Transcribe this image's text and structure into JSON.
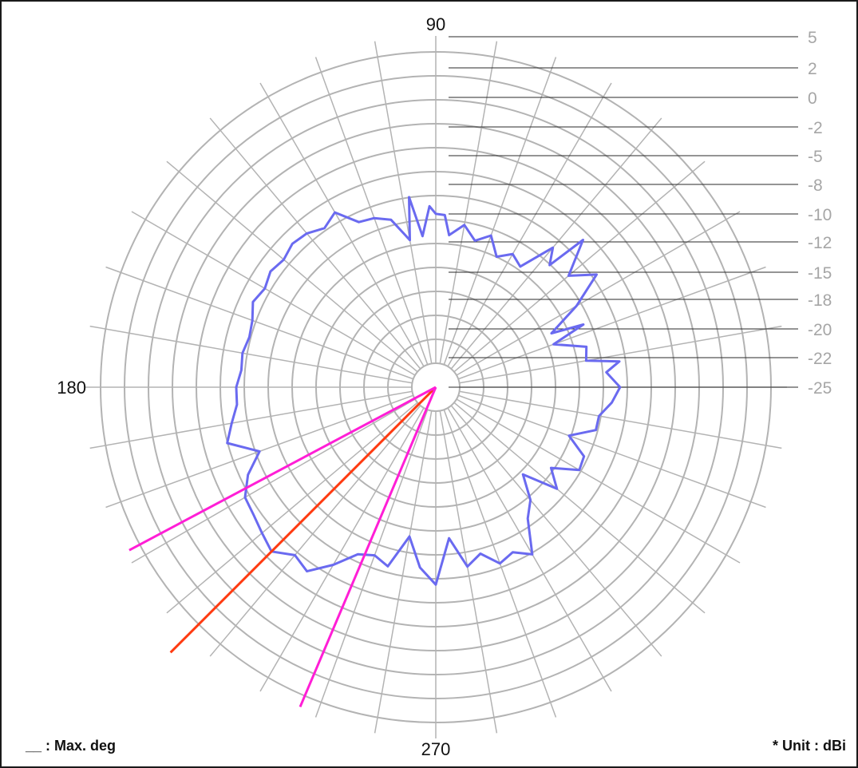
{
  "chart_data": {
    "type": "polar",
    "unit_note": "* Unit :  dBi",
    "legend_note": "__ : Max. deg",
    "angle_labels": [
      {
        "deg": 90,
        "text": "90"
      },
      {
        "deg": 180,
        "text": "180"
      },
      {
        "deg": 270,
        "text": "270"
      }
    ],
    "radial_ticks": [
      "5",
      "2",
      "0",
      "-2",
      "-5",
      "-8",
      "-10",
      "-12",
      "-15",
      "-18",
      "-20",
      "-22",
      "-25"
    ],
    "radial_range_dbi": [
      -25,
      5
    ],
    "angular_grid_step_deg": 10,
    "grid": true,
    "max_direction_deg": 225,
    "half_power_bounds_deg": [
      208,
      247
    ],
    "colors": {
      "pattern": "#6a6af0",
      "max_line": "#ff3a10",
      "bound_lines": "#ff1ed6",
      "grid": "#b3b3b3",
      "tick_lines": "#2a2a2a",
      "tick_text": "#a6a6a6"
    },
    "series": [
      {
        "angles_deg": [
          0,
          5,
          8,
          10,
          15,
          20,
          23,
          25,
          30,
          35,
          40,
          45,
          47,
          50,
          55,
          60,
          65,
          70,
          75,
          80,
          85,
          87,
          90,
          92,
          95,
          98,
          100,
          105,
          110,
          115,
          120,
          125,
          130,
          135,
          140,
          145,
          150,
          155,
          160,
          165,
          170,
          175,
          180,
          185,
          190,
          195,
          200,
          205,
          210,
          215,
          220,
          225,
          230,
          235,
          240,
          245,
          250,
          255,
          260,
          265,
          270,
          275,
          280,
          285,
          290,
          295,
          300,
          305,
          310,
          315,
          320,
          325,
          330,
          335,
          340,
          345,
          350,
          355
        ],
        "values_dbi": [
          -10.3,
          -11.5,
          -10.2,
          -13.2,
          -12.9,
          -15.7,
          -12.5,
          -15.5,
          -12.3,
          -9.2,
          -11.3,
          -8.1,
          -11.9,
          -10.5,
          -13.7,
          -13.1,
          -14.0,
          -12.4,
          -13.3,
          -12.1,
          -13.2,
          -11.4,
          -11.3,
          -10.6,
          -13.3,
          -9.6,
          -13.5,
          -11.3,
          -10.7,
          -10.5,
          -8.7,
          -9.4,
          -8.8,
          -8.6,
          -9.0,
          -8.7,
          -9.1,
          -8.7,
          -9.3,
          -9.5,
          -9.2,
          -9.3,
          -8.9,
          -8.9,
          -8.2,
          -7.4,
          -10.0,
          -8.2,
          -7.0,
          -6.8,
          -6.4,
          -5.9,
          -7.1,
          -6.6,
          -8.4,
          -10.3,
          -10.8,
          -10.2,
          -13.3,
          -10.6,
          -9.1,
          -13.3,
          -10.5,
          -11.4,
          -10.0,
          -10.5,
          -9.5,
          -12.5,
          -13.7,
          -15.9,
          -12.7,
          -14.3,
          -12.0,
          -12.2,
          -14.2,
          -12.0,
          -12.0,
          -11.0
        ]
      }
    ]
  }
}
